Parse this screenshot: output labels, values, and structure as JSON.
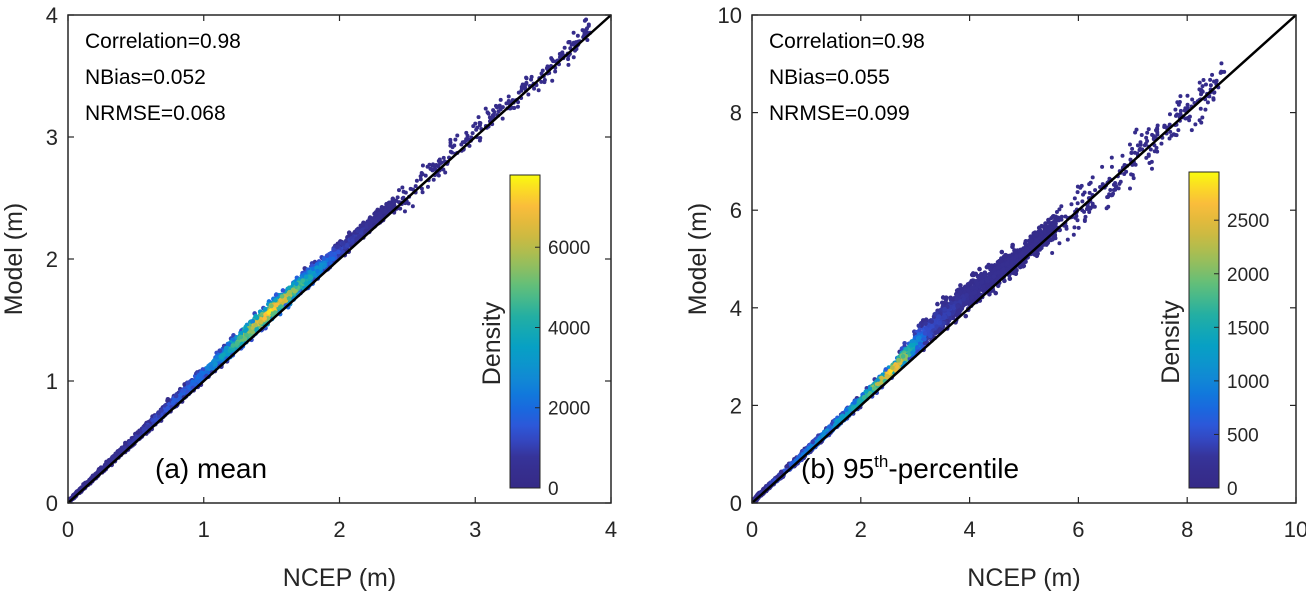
{
  "chart_data": [
    {
      "type": "scatter",
      "subtype": "density-scatter",
      "panel_label": "(a) mean",
      "panel_label_parts": {
        "prefix": "(a) mean",
        "sup": "",
        "suffix": ""
      },
      "xlabel": "NCEP (m)",
      "ylabel": "Model (m)",
      "xlim": [
        0,
        4
      ],
      "ylim": [
        0,
        4
      ],
      "xticks": [
        "0",
        "1",
        "2",
        "3",
        "4"
      ],
      "yticks": [
        "0",
        "1",
        "2",
        "3",
        "4"
      ],
      "stats": [
        "Correlation=0.98",
        "NBias=0.052",
        "NRMSE=0.068"
      ],
      "reference_line": "y = x",
      "colorbar": {
        "label": "Density",
        "range": [
          0,
          7800
        ],
        "ticks": [
          "0",
          "2000",
          "4000",
          "6000"
        ],
        "tick_values": [
          0,
          2000,
          4000,
          6000
        ]
      },
      "band": [
        [
          0.0,
          0.01,
          0.02,
          200
        ],
        [
          0.5,
          0.53,
          0.05,
          900
        ],
        [
          1.0,
          1.06,
          0.09,
          2200
        ],
        [
          1.5,
          1.58,
          0.12,
          7800
        ],
        [
          2.0,
          2.07,
          0.1,
          1200
        ],
        [
          2.4,
          2.45,
          0.07,
          300
        ]
      ],
      "sparse_range": [
        2.4,
        3.85
      ],
      "sparse_spread": 0.1
    },
    {
      "type": "scatter",
      "subtype": "density-scatter",
      "panel_label": "(b) 95th-percentile",
      "panel_label_parts": {
        "prefix": "(b) 95",
        "sup": "th",
        "suffix": "-percentile"
      },
      "xlabel": "NCEP (m)",
      "ylabel": "Model (m)",
      "xlim": [
        0,
        10
      ],
      "ylim": [
        0,
        10
      ],
      "xticks": [
        "0",
        "2",
        "4",
        "6",
        "8",
        "10"
      ],
      "yticks": [
        "0",
        "2",
        "4",
        "6",
        "8",
        "10"
      ],
      "stats": [
        "Correlation=0.98",
        "NBias=0.055",
        "NRMSE=0.099"
      ],
      "reference_line": "y = x",
      "colorbar": {
        "label": "Density",
        "range": [
          0,
          2950
        ],
        "ticks": [
          "0",
          "500",
          "1000",
          "1500",
          "2000",
          "2500"
        ],
        "tick_values": [
          0,
          500,
          1000,
          1500,
          2000,
          2500
        ]
      },
      "band": [
        [
          0.0,
          0.02,
          0.05,
          200
        ],
        [
          1.0,
          1.05,
          0.12,
          900
        ],
        [
          2.0,
          2.1,
          0.15,
          1600
        ],
        [
          2.6,
          2.75,
          0.2,
          2950
        ],
        [
          3.2,
          3.5,
          0.4,
          500
        ],
        [
          4.0,
          4.3,
          0.45,
          250
        ],
        [
          5.0,
          5.1,
          0.35,
          150
        ],
        [
          5.6,
          5.7,
          0.3,
          80
        ]
      ],
      "sparse_range": [
        5.5,
        8.7
      ],
      "sparse_spread": 0.45
    }
  ]
}
